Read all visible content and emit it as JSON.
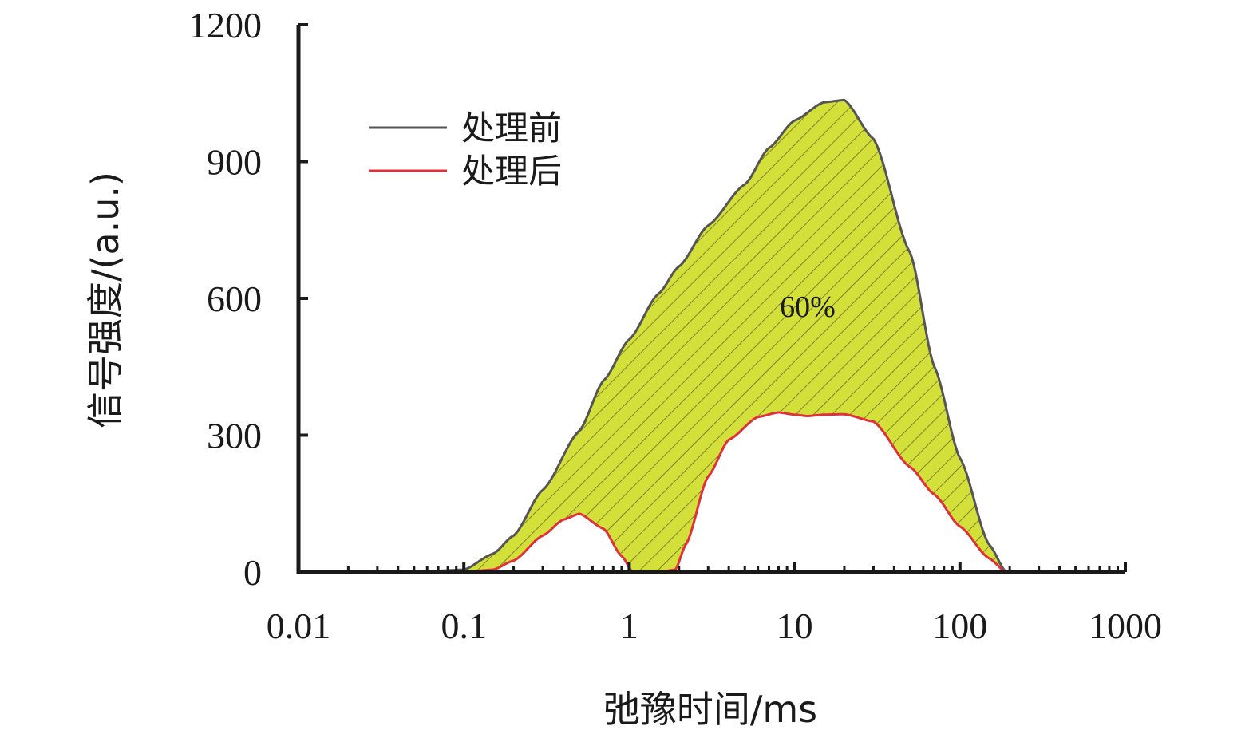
{
  "chart_data": {
    "type": "area",
    "x_scale": "log",
    "xlim": [
      0.01,
      1000
    ],
    "ylim": [
      0,
      1200
    ],
    "xticks": [
      "0.01",
      "0.1",
      "1",
      "10",
      "100",
      "1000"
    ],
    "yticks": [
      "0",
      "300",
      "600",
      "900",
      "1200"
    ],
    "xlabel": "弛豫时间/ms",
    "ylabel": "信号强度/(a.u.)",
    "legend_position": "top-left",
    "annotation": "60%",
    "fill_color": "#d4e03a",
    "series": [
      {
        "name": "处理前",
        "color": "#555555",
        "x": [
          0.01,
          0.05,
          0.1,
          0.15,
          0.2,
          0.3,
          0.5,
          0.7,
          1,
          1.5,
          2,
          3,
          5,
          7,
          10,
          15,
          20,
          30,
          50,
          70,
          100,
          150,
          190,
          300,
          1000
        ],
        "y": [
          0,
          0,
          5,
          40,
          80,
          180,
          310,
          420,
          510,
          610,
          670,
          760,
          850,
          930,
          990,
          1030,
          1035,
          950,
          700,
          450,
          250,
          60,
          0,
          0,
          0
        ]
      },
      {
        "name": "处理后",
        "color": "#e0303a",
        "x": [
          0.01,
          0.1,
          0.15,
          0.2,
          0.3,
          0.4,
          0.5,
          0.7,
          0.9,
          1.05,
          1.5,
          1.9,
          2.2,
          3,
          4,
          6,
          8,
          10,
          12,
          15,
          20,
          30,
          50,
          70,
          100,
          150,
          190,
          300,
          1000
        ],
        "y": [
          0,
          0,
          5,
          25,
          80,
          115,
          128,
          95,
          35,
          0,
          0,
          5,
          60,
          210,
          290,
          340,
          350,
          345,
          342,
          345,
          346,
          330,
          230,
          170,
          100,
          30,
          0,
          0,
          0
        ]
      }
    ]
  }
}
